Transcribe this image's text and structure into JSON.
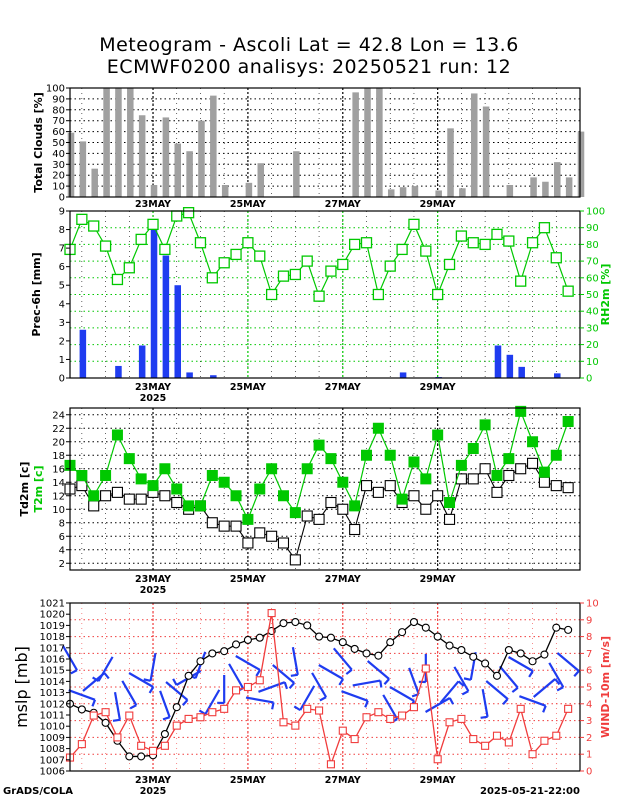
{
  "title": {
    "line1": "Meteogram - Ascoli Lat = 42.8 Lon = 13.6",
    "line2": "ECMWF0200 analisys: 20250521 run: 12"
  },
  "footer": {
    "left": "GrADS/COLA",
    "right": "2025-05-21-22:00"
  },
  "date_labels": [
    {
      "label": "23MAY",
      "year": "2025",
      "step": 7
    },
    {
      "label": "25MAY",
      "year": "",
      "step": 15
    },
    {
      "label": "27MAY",
      "year": "",
      "step": 23
    },
    {
      "label": "29MAY",
      "year": "",
      "step": 31
    }
  ],
  "colors": {
    "clouds": "#a0a0a0",
    "precip": "#1f3cf0",
    "rh": "#00c800",
    "t2m": "#00c800",
    "td2m": "#000000",
    "mslp": "#000000",
    "wind": "#f03c3c",
    "barb": "#1f3cf0"
  },
  "chart_data": [
    {
      "type": "bar",
      "ylabel": "Total Clouds [%]",
      "ylim": [
        0,
        100
      ],
      "yticks": [
        0,
        10,
        20,
        30,
        40,
        50,
        60,
        70,
        80,
        90,
        100
      ],
      "values": [
        59,
        51,
        26,
        100,
        100,
        100,
        75,
        11,
        73,
        49,
        42,
        70,
        93,
        11,
        0,
        13,
        31,
        0,
        0,
        42,
        0,
        0,
        0,
        0,
        96,
        100,
        100,
        7,
        9,
        10,
        0,
        6,
        63,
        8,
        95,
        83,
        0,
        11,
        0,
        18,
        14,
        32,
        18,
        60
      ]
    },
    {
      "type": "bar+line",
      "ylabel": "Prec-6h [mm]",
      "y2label": "RH2m [%]",
      "ylim": [
        0,
        9
      ],
      "y2lim": [
        0,
        100
      ],
      "yticks": [
        0,
        1,
        2,
        3,
        4,
        5,
        6,
        7,
        8,
        9
      ],
      "y2ticks": [
        0,
        10,
        20,
        30,
        40,
        50,
        60,
        70,
        80,
        90,
        100
      ],
      "series": [
        {
          "name": "Prec-6h",
          "type": "bar",
          "values": [
            0,
            2.6,
            0,
            0,
            0.65,
            0,
            1.75,
            8.1,
            6.6,
            5.0,
            0.3,
            0,
            0.15,
            0,
            0,
            0,
            0,
            0,
            0,
            0,
            0,
            0,
            0,
            0,
            0,
            0,
            0,
            0,
            0.3,
            0,
            0,
            0.05,
            0,
            0,
            0,
            0,
            1.75,
            1.25,
            0.6,
            0,
            0,
            0.25,
            0,
            0
          ]
        },
        {
          "name": "RH2m",
          "type": "line",
          "values": [
            77,
            95,
            91,
            79,
            59,
            66,
            83,
            92,
            77,
            97,
            99,
            81,
            60,
            69,
            74,
            81,
            73,
            50,
            61,
            62,
            70,
            49,
            64,
            68,
            80,
            81,
            50,
            67,
            77,
            92,
            76,
            50,
            68,
            85,
            81,
            80,
            86,
            82,
            58,
            81,
            90,
            72,
            52
          ]
        }
      ]
    },
    {
      "type": "line",
      "ylabel": "Td2m [c]",
      "ylabel2": "T2m [c]",
      "ylim": [
        1,
        25
      ],
      "yticks": [
        2,
        4,
        6,
        8,
        10,
        12,
        14,
        16,
        18,
        20,
        22,
        24
      ],
      "series": [
        {
          "name": "Td2m",
          "values": [
            13,
            13.5,
            10.5,
            12,
            12.5,
            11.5,
            11.5,
            12.5,
            12,
            11,
            10,
            10.5,
            8,
            7.5,
            7.5,
            5,
            6.5,
            6,
            5,
            2.5,
            9,
            8.5,
            11,
            10,
            7,
            13.5,
            12.5,
            13.5,
            11,
            12,
            10,
            12,
            8.5,
            14.5,
            14.5,
            16,
            12.5,
            15,
            16,
            16.8,
            14,
            13.5,
            13.2
          ]
        },
        {
          "name": "T2m",
          "values": [
            16.5,
            15,
            12,
            15,
            21,
            17.5,
            14.5,
            13.5,
            16,
            13,
            10.5,
            10.5,
            15,
            14,
            12,
            8.5,
            13,
            16,
            12,
            9.5,
            16,
            19.5,
            17.5,
            14,
            10.5,
            18,
            22,
            18,
            11.5,
            17,
            14.5,
            21,
            11,
            16.5,
            19,
            22.5,
            15,
            17.5,
            24.5,
            20,
            15.5,
            18,
            23
          ]
        }
      ]
    },
    {
      "type": "line",
      "ylabel": "mslp [mb]",
      "y2label": "WIND-10m [m/s]",
      "ylim": [
        1006,
        1021
      ],
      "y2lim": [
        0,
        10
      ],
      "yticks": [
        1006,
        1007,
        1008,
        1009,
        1010,
        1011,
        1012,
        1013,
        1014,
        1015,
        1016,
        1017,
        1018,
        1019,
        1020,
        1021
      ],
      "y2ticks": [
        0,
        1,
        2,
        3,
        4,
        5,
        6,
        7,
        8,
        9,
        10
      ],
      "series": [
        {
          "name": "mslp",
          "values": [
            1012,
            1011.5,
            1011.2,
            1010.3,
            1008.7,
            1007.3,
            1007.3,
            1007.4,
            1009.3,
            1011.7,
            1014.5,
            1015.8,
            1016.5,
            1016.7,
            1017.3,
            1017.7,
            1017.9,
            1018.5,
            1019.2,
            1019.3,
            1019,
            1018,
            1017.9,
            1017.5,
            1016.9,
            1016.5,
            1016.3,
            1017.5,
            1018.4,
            1019.3,
            1018.8,
            1018,
            1017.2,
            1016.8,
            1016.2,
            1015.6,
            1014.5,
            1016.8,
            1016.5,
            1015.8,
            1016.4,
            1018.8,
            1018.6
          ]
        },
        {
          "name": "WIND-10m",
          "values": [
            0.8,
            1.6,
            3.3,
            3.5,
            2,
            3.3,
            1.5,
            1.2,
            1.5,
            2.7,
            3.1,
            3.2,
            3.5,
            3.7,
            4.8,
            5,
            5.4,
            9.4,
            2.9,
            2.7,
            3.7,
            3.6,
            0.4,
            2.4,
            1.9,
            3.2,
            3.5,
            3.1,
            3.3,
            3.8,
            6.1,
            0.7,
            2.9,
            3.1,
            1.9,
            1.5,
            2.1,
            1.7,
            3.7,
            1,
            1.8,
            2.1,
            3.7
          ]
        }
      ]
    }
  ]
}
